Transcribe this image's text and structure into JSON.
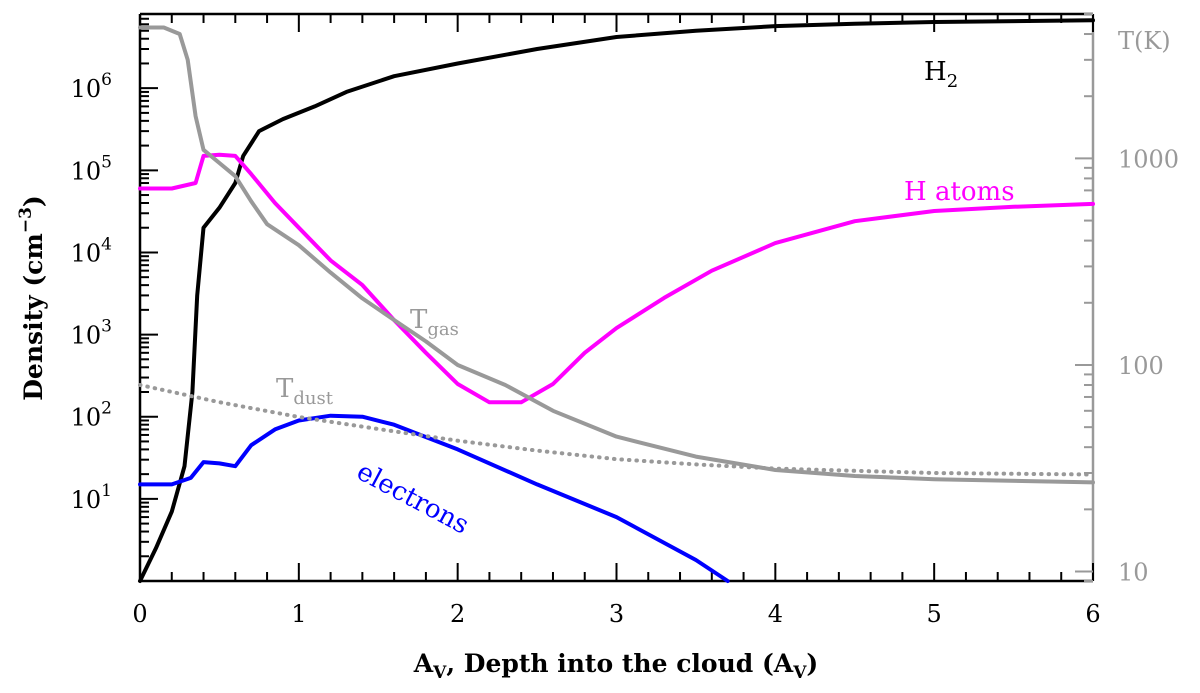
{
  "chart_data": {
    "type": "line",
    "xlabel": {
      "main": "A",
      "sub": "V",
      "rest": ", Depth into the cloud (A",
      "sub2": "V",
      "end": ")"
    },
    "ylabel": {
      "main": "Density (cm",
      "sup": "−3",
      "end": ")"
    },
    "y2label": "T(K)",
    "xlim": [
      0,
      6
    ],
    "ylim": [
      1,
      8000000
    ],
    "y2lim": [
      9,
      5000
    ],
    "yscale": "log",
    "y2scale": "log",
    "grid": false,
    "x_ticks": [
      "0",
      "1",
      "2",
      "3",
      "4",
      "5",
      "6"
    ],
    "y_ticks": [
      {
        "value": 10,
        "base": "10",
        "exp": "1"
      },
      {
        "value": 100,
        "base": "10",
        "exp": "2"
      },
      {
        "value": 1000,
        "base": "10",
        "exp": "3"
      },
      {
        "value": 10000,
        "base": "10",
        "exp": "4"
      },
      {
        "value": 100000,
        "base": "10",
        "exp": "5"
      },
      {
        "value": 1000000,
        "base": "10",
        "exp": "6"
      }
    ],
    "y2_ticks": [
      {
        "value": 10,
        "label": "10"
      },
      {
        "value": 100,
        "label": "100"
      },
      {
        "value": 1000,
        "label": "1000"
      }
    ],
    "colors": {
      "axis": "#000000",
      "axis2": "#999999"
    },
    "series": [
      {
        "name": "H",
        "name_sub": "2",
        "axis": "left",
        "color": "#000000",
        "dash": "none",
        "points": [
          [
            0,
            1
          ],
          [
            0.1,
            2.5
          ],
          [
            0.2,
            7
          ],
          [
            0.28,
            25
          ],
          [
            0.33,
            200
          ],
          [
            0.36,
            3000
          ],
          [
            0.4,
            20000
          ],
          [
            0.5,
            35000
          ],
          [
            0.6,
            70000
          ],
          [
            0.65,
            150000
          ],
          [
            0.75,
            300000
          ],
          [
            0.9,
            420000
          ],
          [
            1.1,
            600000
          ],
          [
            1.3,
            900000
          ],
          [
            1.6,
            1400000
          ],
          [
            2.0,
            2000000
          ],
          [
            2.5,
            3000000
          ],
          [
            3.0,
            4200000
          ],
          [
            3.5,
            5000000
          ],
          [
            4.0,
            5700000
          ],
          [
            4.5,
            6100000
          ],
          [
            5.0,
            6400000
          ],
          [
            6.0,
            6700000
          ]
        ]
      },
      {
        "name": "H atoms",
        "axis": "left",
        "color": "#ff00ff",
        "dash": "none",
        "points": [
          [
            0,
            60000
          ],
          [
            0.2,
            60000
          ],
          [
            0.35,
            70000
          ],
          [
            0.4,
            150000
          ],
          [
            0.5,
            155000
          ],
          [
            0.6,
            150000
          ],
          [
            0.7,
            90000
          ],
          [
            0.85,
            40000
          ],
          [
            1.0,
            20000
          ],
          [
            1.2,
            8000
          ],
          [
            1.4,
            4000
          ],
          [
            1.6,
            1500
          ],
          [
            1.8,
            600
          ],
          [
            2.0,
            250
          ],
          [
            2.2,
            150
          ],
          [
            2.4,
            150
          ],
          [
            2.6,
            250
          ],
          [
            2.8,
            600
          ],
          [
            3.0,
            1200
          ],
          [
            3.3,
            2800
          ],
          [
            3.6,
            6000
          ],
          [
            4.0,
            13000
          ],
          [
            4.5,
            24000
          ],
          [
            5.0,
            32000
          ],
          [
            5.5,
            36000
          ],
          [
            6.0,
            39000
          ]
        ]
      },
      {
        "name": "electrons",
        "axis": "left",
        "color": "#0000ff",
        "dash": "none",
        "points": [
          [
            0,
            15
          ],
          [
            0.2,
            15
          ],
          [
            0.32,
            18
          ],
          [
            0.4,
            28
          ],
          [
            0.5,
            27
          ],
          [
            0.6,
            25
          ],
          [
            0.7,
            45
          ],
          [
            0.85,
            70
          ],
          [
            1.0,
            90
          ],
          [
            1.2,
            103
          ],
          [
            1.4,
            100
          ],
          [
            1.6,
            80
          ],
          [
            2.0,
            40
          ],
          [
            2.5,
            15
          ],
          [
            3.0,
            6
          ],
          [
            3.5,
            1.8
          ],
          [
            3.7,
            1.0
          ]
        ]
      },
      {
        "name": "T",
        "name_sub": "gas",
        "axis": "right",
        "color": "#999999",
        "dash": "none",
        "points": [
          [
            0,
            4300
          ],
          [
            0.15,
            4300
          ],
          [
            0.25,
            4000
          ],
          [
            0.3,
            3000
          ],
          [
            0.35,
            1600
          ],
          [
            0.4,
            1100
          ],
          [
            0.5,
            950
          ],
          [
            0.6,
            820
          ],
          [
            0.7,
            620
          ],
          [
            0.8,
            480
          ],
          [
            1.0,
            380
          ],
          [
            1.2,
            280
          ],
          [
            1.4,
            210
          ],
          [
            1.6,
            165
          ],
          [
            1.8,
            130
          ],
          [
            2.0,
            100
          ],
          [
            2.3,
            80
          ],
          [
            2.6,
            60
          ],
          [
            3.0,
            45
          ],
          [
            3.5,
            36
          ],
          [
            4.0,
            31
          ],
          [
            4.5,
            29
          ],
          [
            5.0,
            28
          ],
          [
            6.0,
            27
          ]
        ]
      },
      {
        "name": "T",
        "name_sub": "dust",
        "axis": "right",
        "color": "#999999",
        "dash": "dotted",
        "points": [
          [
            0,
            80
          ],
          [
            0.5,
            66
          ],
          [
            1.0,
            56
          ],
          [
            1.5,
            49
          ],
          [
            2.0,
            43
          ],
          [
            2.5,
            38.5
          ],
          [
            3.0,
            35
          ],
          [
            3.5,
            33
          ],
          [
            4.0,
            31.5
          ],
          [
            5.0,
            30
          ],
          [
            6.0,
            29.5
          ]
        ]
      }
    ]
  }
}
